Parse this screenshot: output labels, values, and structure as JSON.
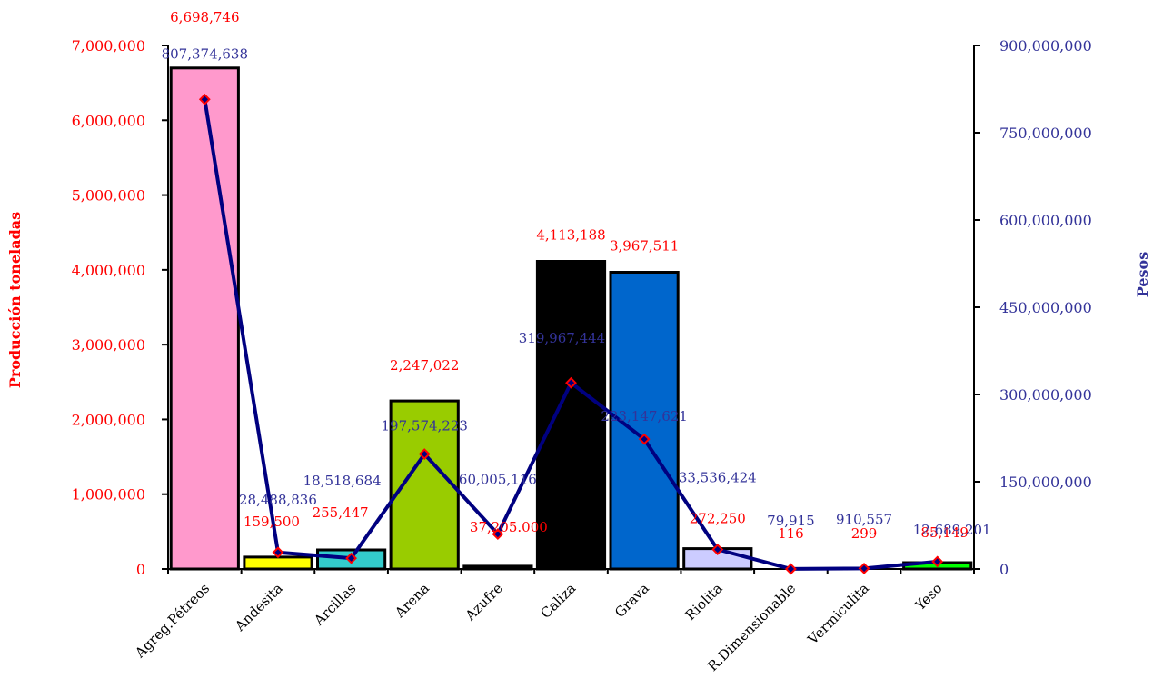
{
  "chart_data": {
    "type": "bar",
    "categories": [
      "Agreg.Pétreos",
      "Andesita",
      "Arcillas",
      "Arena",
      "Azufre",
      "Caliza",
      "Grava",
      "Riolita",
      "R.Dimensionable",
      "Vermiculita",
      "Yeso"
    ],
    "series": [
      {
        "type": "bar",
        "axis": "left",
        "values": [
          6698746,
          159500,
          255447,
          2247022,
          37205,
          4113188,
          3967511,
          272250,
          116,
          299,
          85149
        ],
        "data_labels": [
          "6,698,746",
          "159,500",
          "255,447",
          "2,247,022",
          "37,205.000",
          "4,113,188",
          "3,967,511",
          "272,250",
          "116",
          "299",
          "85,149"
        ],
        "colors": [
          "#ff99cc",
          "#ffff00",
          "#33cccc",
          "#99cc00",
          "#000000",
          "#000000",
          "#0066cc",
          "#ccccff",
          "#000000",
          "#000000",
          "#00ff00"
        ]
      },
      {
        "type": "line",
        "axis": "right",
        "values": [
          807374638,
          28488836,
          18518684,
          197574223,
          60005116,
          319967444,
          223147621,
          33536424,
          79915,
          910557,
          12689201
        ],
        "data_labels": [
          "807,374,638",
          "28,488,836",
          "18,518,684",
          "197,574,223",
          "60,005,116",
          "319,967,444",
          "223,147,621",
          "33,536,424",
          "79,915",
          "910,557",
          "12,689,201"
        ]
      }
    ],
    "ylabel": "Producción toneladas",
    "y2label": "Pesos",
    "ylim": [
      0,
      7000000
    ],
    "y2lim": [
      0,
      900000000
    ],
    "yticks": [
      "0",
      "1,000,000",
      "2,000,000",
      "3,000,000",
      "4,000,000",
      "5,000,000",
      "6,000,000",
      "7,000,000"
    ],
    "y2ticks": [
      "0",
      "150,000,000",
      "300,000,000",
      "450,000,000",
      "600,000,000",
      "750,000,000",
      "900,000,000"
    ],
    "grid": false,
    "colors": {
      "left_axis_text": "#ff0000",
      "right_axis_text": "#333399",
      "line": "#000080",
      "marker_fill": "#000080",
      "marker_stroke": "#ff0000"
    }
  }
}
